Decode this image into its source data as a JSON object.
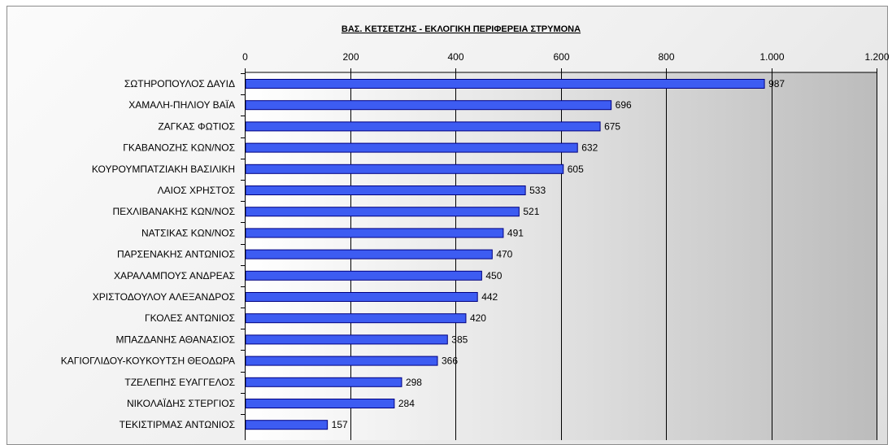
{
  "chart_data": {
    "type": "bar",
    "orientation": "horizontal",
    "title": "ΒΑΣ. ΚΕΤΣΕΤΖΗΣ - ΕΚΛΟΓΙΚΗ ΠΕΡΙΦΕΡΕΙΑ ΣΤΡΥΜΟΝΑ",
    "categories": [
      "ΣΩΤΗΡΟΠΟΥΛΟΣ ΔΑΥΙΔ",
      "ΧΑΜΑΛΗ-ΠΗΛΙΟΥ ΒΑΪΑ",
      "ΖΑΓΚΑΣ ΦΩΤΙΟΣ",
      "ΓΚΑΒΑΝΟΖΗΣ ΚΩΝ/ΝΟΣ",
      "ΚΟΥΡΟΥΜΠΑΤΖΙΑΚΗ ΒΑΣΙΛΙΚΗ",
      "ΛΑΙΟΣ ΧΡΗΣΤΟΣ",
      "ΠΕΧΛΙΒΑΝΑΚΗΣ ΚΩΝ/ΝΟΣ",
      "ΝΑΤΣΙΚΑΣ ΚΩΝ/ΝΟΣ",
      "ΠΑΡΣΕΝΑΚΗΣ ΑΝΤΩΝΙΟΣ",
      "ΧΑΡΑΛΑΜΠΟΥΣ ΑΝΔΡΕΑΣ",
      "ΧΡΙΣΤΟΔΟΥΛΟΥ ΑΛΕΞΑΝΔΡΟΣ",
      "ΓΚΟΛΕΣ ΑΝΤΩΝΙΟΣ",
      "ΜΠΑΖΔΑΝΗΣ ΑΘΑΝΑΣΙΟΣ",
      "ΚΑΓΙΟΓΛΙΔΟΥ-ΚΟΥΚΟΥΤΣΗ ΘΕΟΔΩΡΑ",
      "ΤΖΕΛΕΠΗΣ ΕΥΑΓΓΕΛΟΣ",
      "ΝΙΚΟΛΑΪΔΗΣ ΣΤΕΡΓΙΟΣ",
      "ΤΕΚΙΣΤΙΡΜΑΣ ΑΝΤΩΝΙΟΣ"
    ],
    "values": [
      987,
      696,
      675,
      632,
      605,
      533,
      521,
      491,
      470,
      450,
      442,
      420,
      385,
      366,
      298,
      284,
      157
    ],
    "xlim": [
      0,
      1200
    ],
    "ticks": [
      0,
      200,
      400,
      600,
      800,
      1000,
      1200
    ],
    "tick_labels": [
      "0",
      "200",
      "400",
      "600",
      "800",
      "1.000",
      "1.200"
    ],
    "xlabel": "",
    "ylabel": "",
    "grid": true,
    "legend": "none",
    "axis_position": "top",
    "colors": {
      "bar_fill": "#3d5cf2",
      "bar_stroke": "#000080",
      "plot_bg_light": "#ffffff",
      "plot_bg_dark": "#bcbcbc",
      "gridline": "#000000"
    }
  }
}
